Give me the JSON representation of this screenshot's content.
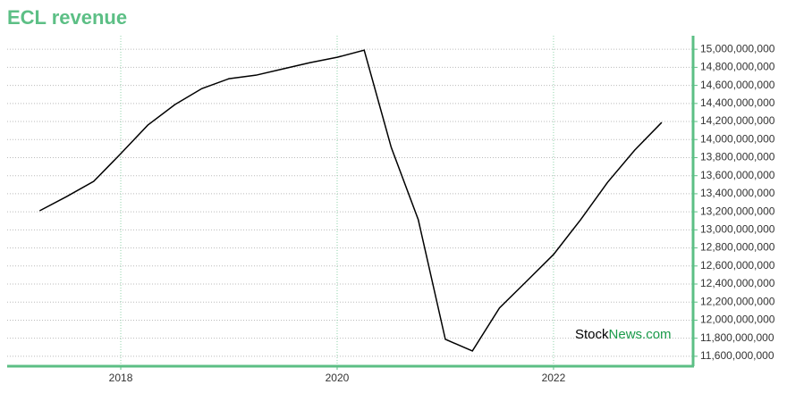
{
  "chart_data": {
    "type": "line",
    "title": "ECL revenue",
    "watermark": [
      "Stock",
      "News.com"
    ],
    "x": [
      2017.25,
      2017.5,
      2017.75,
      2018.0,
      2018.25,
      2018.5,
      2018.75,
      2019.0,
      2019.25,
      2019.5,
      2019.75,
      2020.0,
      2020.25,
      2020.5,
      2020.75,
      2021.0,
      2021.25,
      2021.5,
      2021.75,
      2022.0,
      2022.25,
      2022.5,
      2022.75,
      2023.0
    ],
    "series": [
      {
        "name": "revenue",
        "color": "#000000",
        "values": [
          13211000000,
          13369000000,
          13537000000,
          13844000000,
          14160000000,
          14387000000,
          14565000000,
          14674000000,
          14713000000,
          14783000000,
          14852000000,
          14911000000,
          14990000000,
          13913000000,
          13112000000,
          11788000000,
          11659000000,
          12134000000,
          12430000000,
          12727000000,
          13112000000,
          13527000000,
          13883000000,
          14190000000
        ]
      }
    ],
    "xlim": [
      2016.95,
      2023.29
    ],
    "xticks": [
      2018,
      2020,
      2022
    ],
    "ylim": [
      11490000000,
      15150000000
    ],
    "yticks": [
      {
        "value": 11600000000,
        "label": "11,600,000,000"
      },
      {
        "value": 11800000000,
        "label": "11,800,000,000"
      },
      {
        "value": 12000000000,
        "label": "12,000,000,000"
      },
      {
        "value": 12200000000,
        "label": "12,200,000,000"
      },
      {
        "value": 12400000000,
        "label": "12,400,000,000"
      },
      {
        "value": 12600000000,
        "label": "12,600,000,000"
      },
      {
        "value": 12800000000,
        "label": "12,800,000,000"
      },
      {
        "value": 13000000000,
        "label": "13,000,000,000"
      },
      {
        "value": 13200000000,
        "label": "13,200,000,000"
      },
      {
        "value": 13400000000,
        "label": "13,400,000,000"
      },
      {
        "value": 13600000000,
        "label": "13,600,000,000"
      },
      {
        "value": 13800000000,
        "label": "13,800,000,000"
      },
      {
        "value": 14000000000,
        "label": "14,000,000,000"
      },
      {
        "value": 14200000000,
        "label": "14,200,000,000"
      },
      {
        "value": 14400000000,
        "label": "14,400,000,000"
      },
      {
        "value": 14600000000,
        "label": "14,600,000,000"
      },
      {
        "value": 14800000000,
        "label": "14,800,000,000"
      },
      {
        "value": 15000000000,
        "label": "15,000,000,000"
      }
    ],
    "grid": true,
    "axis_color": "#5cbf85"
  }
}
